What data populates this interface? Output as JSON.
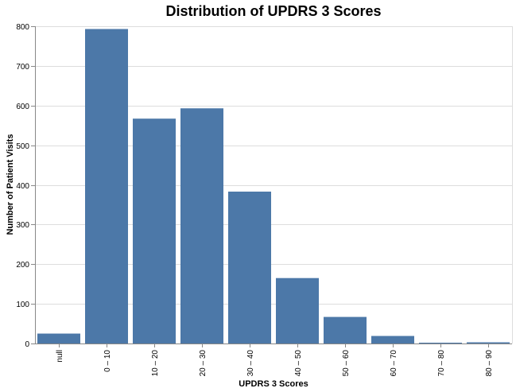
{
  "chart_data": {
    "type": "bar",
    "title": "Distribution of UPDRS 3 Scores",
    "xlabel": "UPDRS 3 Scores",
    "ylabel": "Number of Patient Visits",
    "categories": [
      "null",
      "0 – 10",
      "10 – 20",
      "20 – 30",
      "30 – 40",
      "40 – 50",
      "50 – 60",
      "60 – 70",
      "70 – 80",
      "80 – 90"
    ],
    "values": [
      25,
      793,
      567,
      593,
      383,
      165,
      67,
      19,
      2,
      3
    ],
    "ylim": [
      0,
      800
    ],
    "yticks": [
      0,
      100,
      200,
      300,
      400,
      500,
      600,
      700,
      800
    ],
    "grid": true,
    "bar_color": "#4c78a8"
  }
}
